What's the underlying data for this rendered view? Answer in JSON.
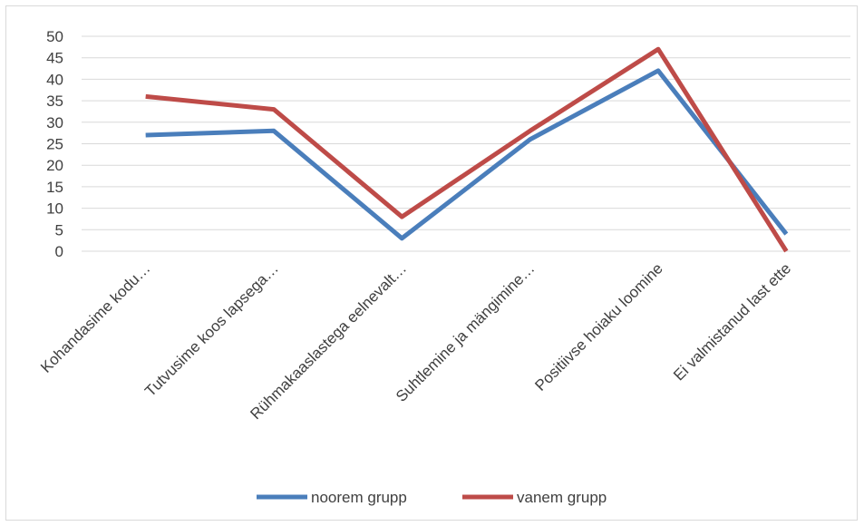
{
  "chart_data": {
    "type": "line",
    "title": "",
    "xlabel": "",
    "ylabel": "",
    "ylim": [
      0,
      50
    ],
    "yticks": [
      0,
      5,
      10,
      15,
      20,
      25,
      30,
      35,
      40,
      45,
      50
    ],
    "grid": true,
    "legend_position": "bottom",
    "categories": [
      "Kohandasime kodu…",
      "Tutvusime koos lapsega…",
      "Rühmakaaslastega eelnevalt…",
      "Suhtlemine ja mängimine…",
      "Positiivse hoiaku loomine",
      "Ei valmistanud last ette"
    ],
    "series": [
      {
        "name": "noorem grupp",
        "color": "#4a7ebb",
        "values": [
          27,
          28,
          3,
          26,
          42,
          4
        ]
      },
      {
        "name": "vanem grupp",
        "color": "#be4b48",
        "values": [
          36,
          33,
          8,
          28,
          47,
          0
        ]
      }
    ]
  }
}
